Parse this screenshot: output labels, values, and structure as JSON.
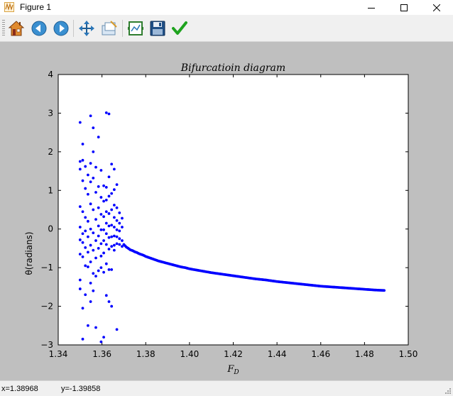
{
  "window": {
    "title": "Figure 1"
  },
  "toolbar": {
    "buttons": [
      {
        "name": "home-button",
        "icon": "home-icon"
      },
      {
        "name": "back-button",
        "icon": "arrow-left-icon"
      },
      {
        "name": "forward-button",
        "icon": "arrow-right-icon"
      },
      {
        "name": "pan-button",
        "icon": "move-icon"
      },
      {
        "name": "zoom-button",
        "icon": "zoom-rect-icon"
      },
      {
        "name": "subplots-button",
        "icon": "subplots-icon"
      },
      {
        "name": "save-button",
        "icon": "floppy-disk-icon"
      },
      {
        "name": "edit-button",
        "icon": "checkmark-icon"
      }
    ]
  },
  "status": {
    "x": "x=1.38968",
    "y": "y=-1.39858"
  },
  "chart_data": {
    "type": "scatter",
    "title": "Bifurcatioin diagram",
    "xlabel": "F_D",
    "ylabel": "θ(radians)",
    "xlim": [
      1.34,
      1.5
    ],
    "ylim": [
      -3,
      4
    ],
    "xticks": [
      "1.34",
      "1.36",
      "1.38",
      "1.40",
      "1.42",
      "1.44",
      "1.46",
      "1.48",
      "1.50"
    ],
    "yticks": [
      "4",
      "3",
      "2",
      "1",
      "0",
      "−1",
      "−2",
      "−3"
    ],
    "xtick_values": [
      1.34,
      1.36,
      1.38,
      1.4,
      1.42,
      1.44,
      1.46,
      1.48,
      1.5
    ],
    "ytick_values": [
      4,
      3,
      2,
      1,
      0,
      -1,
      -2,
      -3
    ],
    "grid": false,
    "marker_color": "#0000ff",
    "series": [
      {
        "points": [
          [
            1.35,
            2.76
          ],
          [
            1.35,
            1.75
          ],
          [
            1.35,
            1.55
          ],
          [
            1.35,
            0.58
          ],
          [
            1.35,
            0.05
          ],
          [
            1.35,
            -0.28
          ],
          [
            1.35,
            -0.65
          ],
          [
            1.35,
            -1.32
          ],
          [
            1.35,
            -1.55
          ],
          [
            1.3512,
            2.2
          ],
          [
            1.3512,
            1.78
          ],
          [
            1.3512,
            1.25
          ],
          [
            1.3512,
            0.45
          ],
          [
            1.3512,
            -0.12
          ],
          [
            1.3512,
            -0.35
          ],
          [
            1.3512,
            -0.72
          ],
          [
            1.3512,
            -2.05
          ],
          [
            1.3512,
            -2.85
          ],
          [
            1.3524,
            1.62
          ],
          [
            1.3524,
            1.05
          ],
          [
            1.3524,
            0.3
          ],
          [
            1.3524,
            -0.05
          ],
          [
            1.3524,
            -0.48
          ],
          [
            1.3524,
            -0.95
          ],
          [
            1.3524,
            -1.7
          ],
          [
            1.3536,
            1.4
          ],
          [
            1.3536,
            0.9
          ],
          [
            1.3536,
            0.2
          ],
          [
            1.3536,
            -0.2
          ],
          [
            1.3536,
            -0.6
          ],
          [
            1.3536,
            -0.98
          ],
          [
            1.3536,
            -2.5
          ],
          [
            1.3548,
            2.93
          ],
          [
            1.3548,
            1.7
          ],
          [
            1.3548,
            1.22
          ],
          [
            1.3548,
            0.65
          ],
          [
            1.3548,
            0.0
          ],
          [
            1.3548,
            -0.42
          ],
          [
            1.3548,
            -0.85
          ],
          [
            1.3548,
            -1.4
          ],
          [
            1.3548,
            -1.88
          ],
          [
            1.356,
            2.62
          ],
          [
            1.356,
            2.0
          ],
          [
            1.356,
            1.32
          ],
          [
            1.356,
            0.5
          ],
          [
            1.356,
            -0.1
          ],
          [
            1.356,
            -0.55
          ],
          [
            1.356,
            -1.15
          ],
          [
            1.356,
            -1.6
          ],
          [
            1.3572,
            1.6
          ],
          [
            1.3572,
            0.95
          ],
          [
            1.3572,
            0.25
          ],
          [
            1.3572,
            -0.3
          ],
          [
            1.3572,
            -0.75
          ],
          [
            1.3572,
            -1.22
          ],
          [
            1.3572,
            -2.55
          ],
          [
            1.3584,
            2.38
          ],
          [
            1.3584,
            1.1
          ],
          [
            1.3584,
            0.55
          ],
          [
            1.3584,
            0.08
          ],
          [
            1.3584,
            -0.18
          ],
          [
            1.3584,
            -0.5
          ],
          [
            1.3584,
            -1.08
          ],
          [
            1.3596,
            1.52
          ],
          [
            1.3596,
            0.82
          ],
          [
            1.3596,
            0.38
          ],
          [
            1.3596,
            -0.02
          ],
          [
            1.3596,
            -0.38
          ],
          [
            1.3596,
            -0.7
          ],
          [
            1.3596,
            -1.0
          ],
          [
            1.3596,
            -2.92
          ],
          [
            1.3608,
            1.12
          ],
          [
            1.3608,
            0.72
          ],
          [
            1.3608,
            0.32
          ],
          [
            1.3608,
            -0.02
          ],
          [
            1.3608,
            -0.3
          ],
          [
            1.3608,
            -0.62
          ],
          [
            1.3608,
            -1.12
          ],
          [
            1.3608,
            -2.8
          ],
          [
            1.362,
            3.01
          ],
          [
            1.362,
            1.08
          ],
          [
            1.362,
            0.75
          ],
          [
            1.362,
            0.45
          ],
          [
            1.362,
            0.15
          ],
          [
            1.362,
            -0.12
          ],
          [
            1.362,
            -0.4
          ],
          [
            1.362,
            -0.9
          ],
          [
            1.362,
            -1.72
          ],
          [
            1.3632,
            2.98
          ],
          [
            1.3632,
            1.35
          ],
          [
            1.3632,
            0.85
          ],
          [
            1.3632,
            0.4
          ],
          [
            1.3632,
            0.08
          ],
          [
            1.3632,
            -0.22
          ],
          [
            1.3632,
            -0.52
          ],
          [
            1.3632,
            -1.05
          ],
          [
            1.3632,
            -1.88
          ],
          [
            1.3644,
            1.68
          ],
          [
            1.3644,
            0.92
          ],
          [
            1.3644,
            0.5
          ],
          [
            1.3644,
            0.1
          ],
          [
            1.3644,
            -0.2
          ],
          [
            1.3644,
            -0.45
          ],
          [
            1.3644,
            -1.05
          ],
          [
            1.3644,
            -2.0
          ],
          [
            1.3656,
            1.55
          ],
          [
            1.3656,
            1.02
          ],
          [
            1.3656,
            0.62
          ],
          [
            1.3656,
            0.3
          ],
          [
            1.3656,
            0.05
          ],
          [
            1.3656,
            -0.18
          ],
          [
            1.3656,
            -0.42
          ],
          [
            1.3656,
            -0.55
          ],
          [
            1.3668,
            1.15
          ],
          [
            1.3668,
            0.55
          ],
          [
            1.3668,
            0.22
          ],
          [
            1.3668,
            -0.02
          ],
          [
            1.3668,
            -0.2
          ],
          [
            1.3668,
            -0.38
          ],
          [
            1.3668,
            -2.6
          ],
          [
            1.368,
            0.42
          ],
          [
            1.368,
            0.15
          ],
          [
            1.368,
            -0.05
          ],
          [
            1.368,
            -0.25
          ],
          [
            1.368,
            -0.4
          ],
          [
            1.3692,
            0.28
          ],
          [
            1.3692,
            0.05
          ],
          [
            1.3692,
            -0.3
          ],
          [
            1.3692,
            -0.45
          ]
        ],
        "curve": [
          [
            1.37,
            -0.4
          ],
          [
            1.371,
            -0.46
          ],
          [
            1.372,
            -0.5
          ],
          [
            1.373,
            -0.54
          ],
          [
            1.374,
            -0.56
          ],
          [
            1.375,
            -0.59
          ],
          [
            1.376,
            -0.61
          ],
          [
            1.377,
            -0.64
          ],
          [
            1.378,
            -0.66
          ],
          [
            1.379,
            -0.68
          ],
          [
            1.38,
            -0.71
          ],
          [
            1.382,
            -0.75
          ],
          [
            1.384,
            -0.79
          ],
          [
            1.386,
            -0.83
          ],
          [
            1.388,
            -0.86
          ],
          [
            1.39,
            -0.89
          ],
          [
            1.392,
            -0.92
          ],
          [
            1.394,
            -0.95
          ],
          [
            1.396,
            -0.98
          ],
          [
            1.398,
            -1.0
          ],
          [
            1.4,
            -1.03
          ],
          [
            1.405,
            -1.08
          ],
          [
            1.41,
            -1.13
          ],
          [
            1.415,
            -1.17
          ],
          [
            1.42,
            -1.21
          ],
          [
            1.425,
            -1.25
          ],
          [
            1.43,
            -1.29
          ],
          [
            1.435,
            -1.32
          ],
          [
            1.44,
            -1.36
          ],
          [
            1.445,
            -1.39
          ],
          [
            1.45,
            -1.42
          ],
          [
            1.455,
            -1.45
          ],
          [
            1.46,
            -1.48
          ],
          [
            1.465,
            -1.5
          ],
          [
            1.47,
            -1.52
          ],
          [
            1.475,
            -1.54
          ],
          [
            1.48,
            -1.56
          ],
          [
            1.485,
            -1.58
          ],
          [
            1.489,
            -1.59
          ]
        ]
      }
    ]
  }
}
